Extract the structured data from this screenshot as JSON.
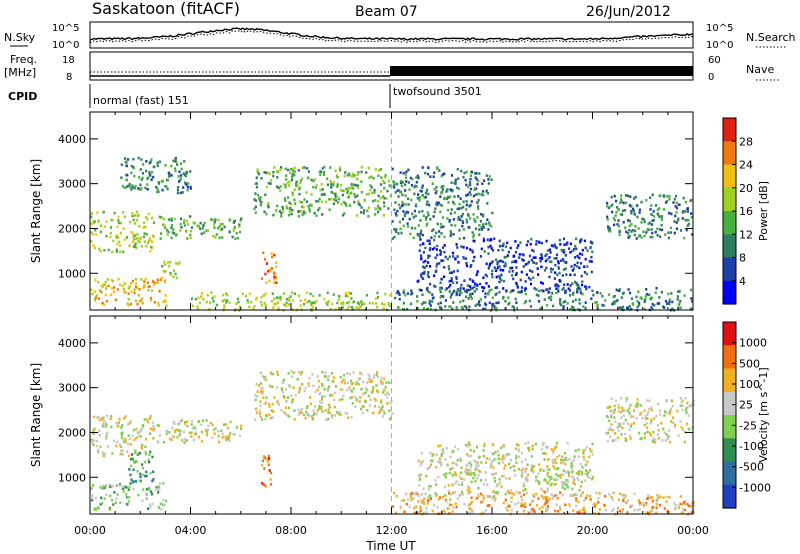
{
  "header": {
    "station": "Saskatoon (fitACF)",
    "beam": "Beam 07",
    "date": "26/Jun/2012"
  },
  "strips": {
    "nsky_label": "N.Sky",
    "nsky_ticks": [
      "10^5",
      "10^0"
    ],
    "nsky_right_ticks": [
      "10^5",
      "10^0"
    ],
    "nsearch_label": "N.Search",
    "freq_label_1": "Freq.",
    "freq_label_2": "[MHz]",
    "freq_ticks": [
      "18",
      "8"
    ],
    "nave_ticks": [
      "60",
      "0"
    ],
    "nave_label": "Nave",
    "cpid_label": "CPID",
    "cpid_modes": [
      {
        "name": "normal (fast) 151",
        "start_hour": 0
      },
      {
        "name": "twofsound 3501",
        "start_hour": 12.0
      }
    ]
  },
  "chart_data": [
    {
      "type": "heatmap",
      "panel": "power",
      "ylabel": "Slant Range [km]",
      "yticks": [
        1000,
        2000,
        3000,
        4000
      ],
      "ylim": [
        180,
        4600
      ],
      "xlim": [
        0,
        24
      ],
      "colorbar_label": "Power [dB]",
      "colorbar_ticks": [
        "28",
        "24",
        "20",
        "16",
        "12",
        "8",
        "4"
      ],
      "colors": [
        "#0000ff",
        "#1f3fa8",
        "#2e7f5f",
        "#49b040",
        "#a0d020",
        "#f2c010",
        "#f07a10",
        "#e02010"
      ],
      "echo_regions": [
        {
          "x0": 0.0,
          "x1": 2.5,
          "r0": 1500,
          "r1": 2400,
          "level": 4
        },
        {
          "x0": 0.0,
          "x1": 3.0,
          "r0": 300,
          "r1": 900,
          "level": 5
        },
        {
          "x0": 1.2,
          "x1": 4.0,
          "r0": 2800,
          "r1": 3600,
          "level": 2
        },
        {
          "x0": 2.5,
          "x1": 6.0,
          "r0": 1800,
          "r1": 2300,
          "level": 3
        },
        {
          "x0": 2.8,
          "x1": 3.6,
          "r0": 900,
          "r1": 1300,
          "level": 4
        },
        {
          "x0": 6.8,
          "x1": 7.4,
          "r0": 800,
          "r1": 1500,
          "level": 6
        },
        {
          "x0": 6.5,
          "x1": 12.0,
          "r0": 2300,
          "r1": 3400,
          "level": 3
        },
        {
          "x0": 4.0,
          "x1": 12.0,
          "r0": 200,
          "r1": 600,
          "level": 4
        },
        {
          "x0": 12.0,
          "x1": 16.0,
          "r0": 1800,
          "r1": 3400,
          "level": 2
        },
        {
          "x0": 13.0,
          "x1": 20.0,
          "r0": 600,
          "r1": 1800,
          "level": 1
        },
        {
          "x0": 12.0,
          "x1": 24.0,
          "r0": 200,
          "r1": 700,
          "level": 2
        },
        {
          "x0": 20.5,
          "x1": 24.0,
          "r0": 1800,
          "r1": 2800,
          "level": 2
        }
      ]
    },
    {
      "type": "heatmap",
      "panel": "velocity",
      "ylabel": "Slant Range [km]",
      "yticks": [
        1000,
        2000,
        3000,
        4000
      ],
      "ylim": [
        180,
        4600
      ],
      "xlim": [
        0,
        24
      ],
      "xlabel": "Time UT",
      "xticks": [
        "00:00",
        "04:00",
        "08:00",
        "12:00",
        "16:00",
        "20:00",
        "00:00"
      ],
      "colorbar_label": "Velocity [m s^-1]",
      "colorbar_ticks": [
        "1000",
        "500",
        "100",
        "25",
        "-25",
        "-100",
        "-500",
        "-1000"
      ],
      "colors": [
        "#2040c0",
        "#2f6fa0",
        "#2f8f4f",
        "#7fd050",
        "#c8c8c8",
        "#f0b020",
        "#f07010",
        "#e01010"
      ],
      "echo_regions": [
        {
          "x0": 0.0,
          "x1": 2.5,
          "r0": 1500,
          "r1": 2400,
          "level": 4
        },
        {
          "x0": 0.0,
          "x1": 3.0,
          "r0": 300,
          "r1": 900,
          "level": 3
        },
        {
          "x0": 1.5,
          "x1": 2.5,
          "r0": 900,
          "r1": 1600,
          "level": 2
        },
        {
          "x0": 2.5,
          "x1": 6.0,
          "r0": 1800,
          "r1": 2300,
          "level": 4
        },
        {
          "x0": 6.8,
          "x1": 7.3,
          "r0": 800,
          "r1": 1500,
          "level": 6
        },
        {
          "x0": 6.5,
          "x1": 12.0,
          "r0": 2300,
          "r1": 3400,
          "level": 4
        },
        {
          "x0": 12.0,
          "x1": 24.0,
          "r0": 200,
          "r1": 700,
          "level": 5
        },
        {
          "x0": 13.0,
          "x1": 20.0,
          "r0": 600,
          "r1": 1800,
          "level": 4
        },
        {
          "x0": 20.5,
          "x1": 24.0,
          "r0": 1800,
          "r1": 2800,
          "level": 4
        }
      ]
    }
  ]
}
